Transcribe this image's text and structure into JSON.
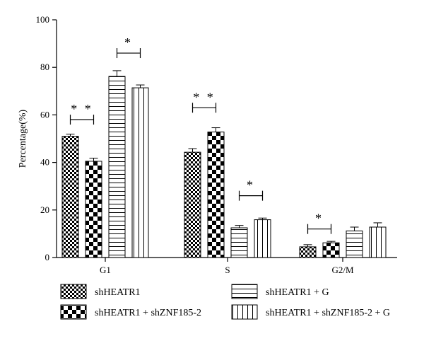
{
  "chart_data": {
    "type": "bar",
    "title": "",
    "xlabel": "",
    "ylabel": "Percentage(%)",
    "ylim": [
      0,
      100
    ],
    "yticks": [
      0,
      20,
      40,
      60,
      80,
      100
    ],
    "grid": false,
    "legend_position": "bottom",
    "categories": [
      "G1",
      "S",
      "G2/M"
    ],
    "series": [
      {
        "name": "shHEATR1",
        "pattern": "checker-fine",
        "values": [
          51,
          44.3,
          4.5
        ],
        "errors": [
          0.9,
          1.5,
          0.9
        ]
      },
      {
        "name": "shHEATR1 + shZNF185-2",
        "pattern": "checker-coarse",
        "values": [
          40.5,
          52.8,
          6.2
        ],
        "errors": [
          1.3,
          1.8,
          0.6
        ]
      },
      {
        "name": "shHEATR1 + G",
        "pattern": "horizontal-lines",
        "values": [
          76.2,
          12.5,
          11.2
        ],
        "errors": [
          2.4,
          1.0,
          1.6
        ]
      },
      {
        "name": "shHEATR1 + shZNF185-2 + G",
        "pattern": "vertical-lines",
        "values": [
          71.4,
          15.9,
          12.8
        ],
        "errors": [
          1.2,
          0.7,
          1.8
        ]
      }
    ],
    "significance": [
      {
        "category": "G1",
        "between": [
          0,
          1
        ],
        "label": "**",
        "level": 58
      },
      {
        "category": "G1",
        "between": [
          2,
          3
        ],
        "label": "*",
        "level": 86
      },
      {
        "category": "S",
        "between": [
          0,
          1
        ],
        "label": "**",
        "level": 63
      },
      {
        "category": "S",
        "between": [
          2,
          3
        ],
        "label": "*",
        "level": 26
      },
      {
        "category": "G2/M",
        "between": [
          0,
          1
        ],
        "label": "*",
        "level": 12
      }
    ]
  }
}
